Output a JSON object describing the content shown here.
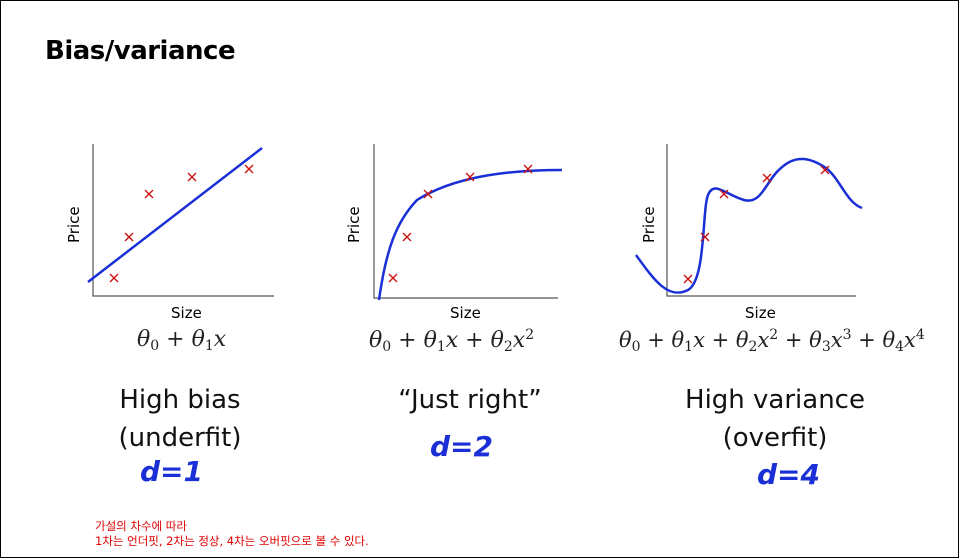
{
  "slide": {
    "title": "Bias/variance",
    "panels": [
      {
        "ylabel": "Price",
        "xlabel": "Size",
        "formula_terms": [
          "θ",
          "0",
          " + θ",
          "1",
          "x"
        ],
        "caption_line1": "High bias",
        "caption_line2": "(underfit)",
        "handwritten": "d=1"
      },
      {
        "ylabel": "Price",
        "xlabel": "Size",
        "formula_terms": [
          "θ",
          "0",
          " + θ",
          "1",
          "x + θ",
          "2",
          "x",
          "2"
        ],
        "caption_line1": "“Just right”",
        "caption_line2": "",
        "handwritten": "d=2"
      },
      {
        "ylabel": "Price",
        "xlabel": "Size",
        "formula_terms": [
          "θ",
          "0",
          " + θ",
          "1",
          "x + θ",
          "2",
          "x",
          "2",
          " + θ",
          "3",
          "x",
          "3",
          " + θ",
          "4",
          "x",
          "4"
        ],
        "caption_line1": "High variance",
        "caption_line2": "(overfit)",
        "handwritten": "d=4"
      }
    ],
    "note_line1": "가설의 차수에 따라",
    "note_line2": "1차는 언더핏, 2차는 정상, 4차는 오버핏으로 볼 수 있다."
  },
  "colors": {
    "curve": "#1a2fd6",
    "marker": "#cc1111",
    "axis": "#555555",
    "note": "#e00000"
  }
}
